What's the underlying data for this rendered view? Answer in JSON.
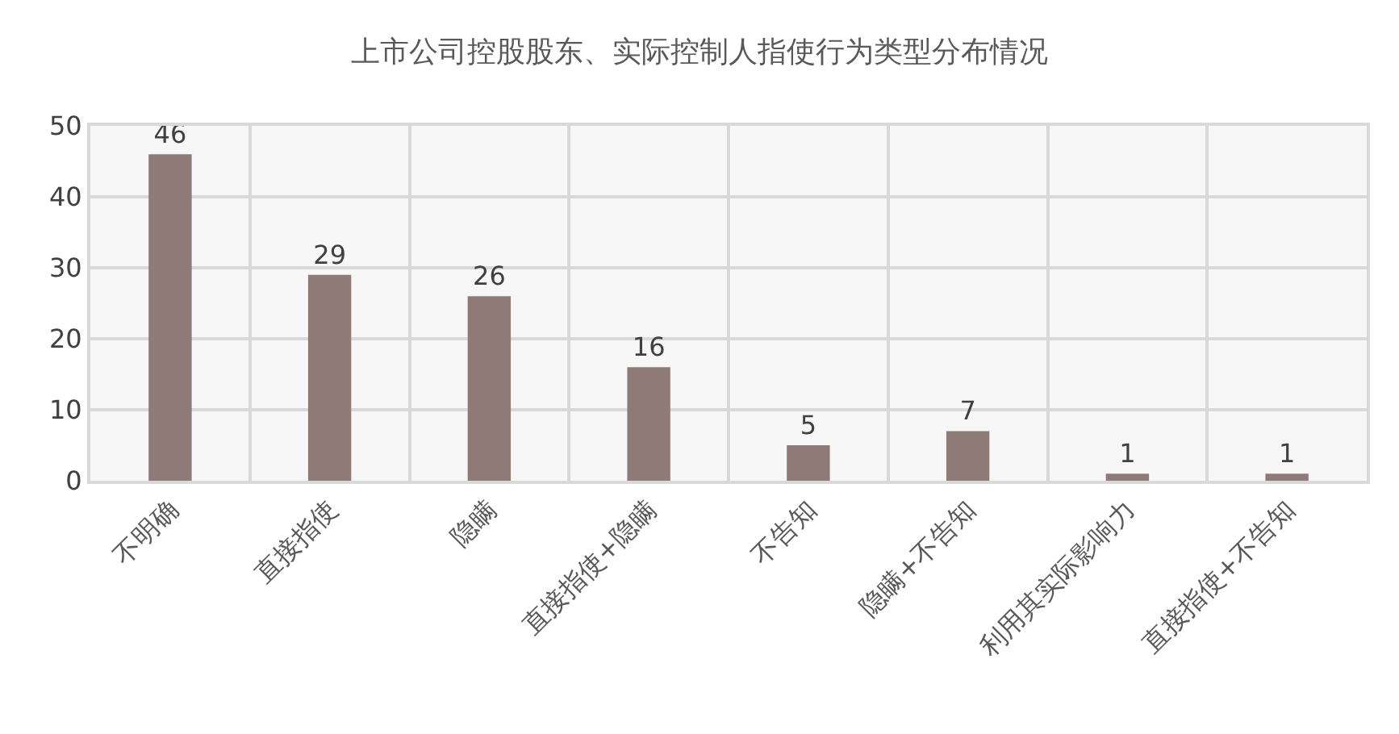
{
  "chart_data": {
    "type": "bar",
    "title": "上市公司控股股东、实际控制人指使行为类型分布情况",
    "categories": [
      "不明确",
      "直接指使",
      "隐瞒",
      "直接指使+隐瞒",
      "不告知",
      "隐瞒+不告知",
      "利用其实际影响力",
      "直接指使+不告知"
    ],
    "values": [
      46,
      29,
      26,
      16,
      5,
      7,
      1,
      1
    ],
    "color": "#8e7b77",
    "ylim": [
      0,
      50
    ],
    "yticks": [
      0,
      10,
      20,
      30,
      40,
      50
    ],
    "grid": true,
    "data_labels": true,
    "legend": false
  }
}
